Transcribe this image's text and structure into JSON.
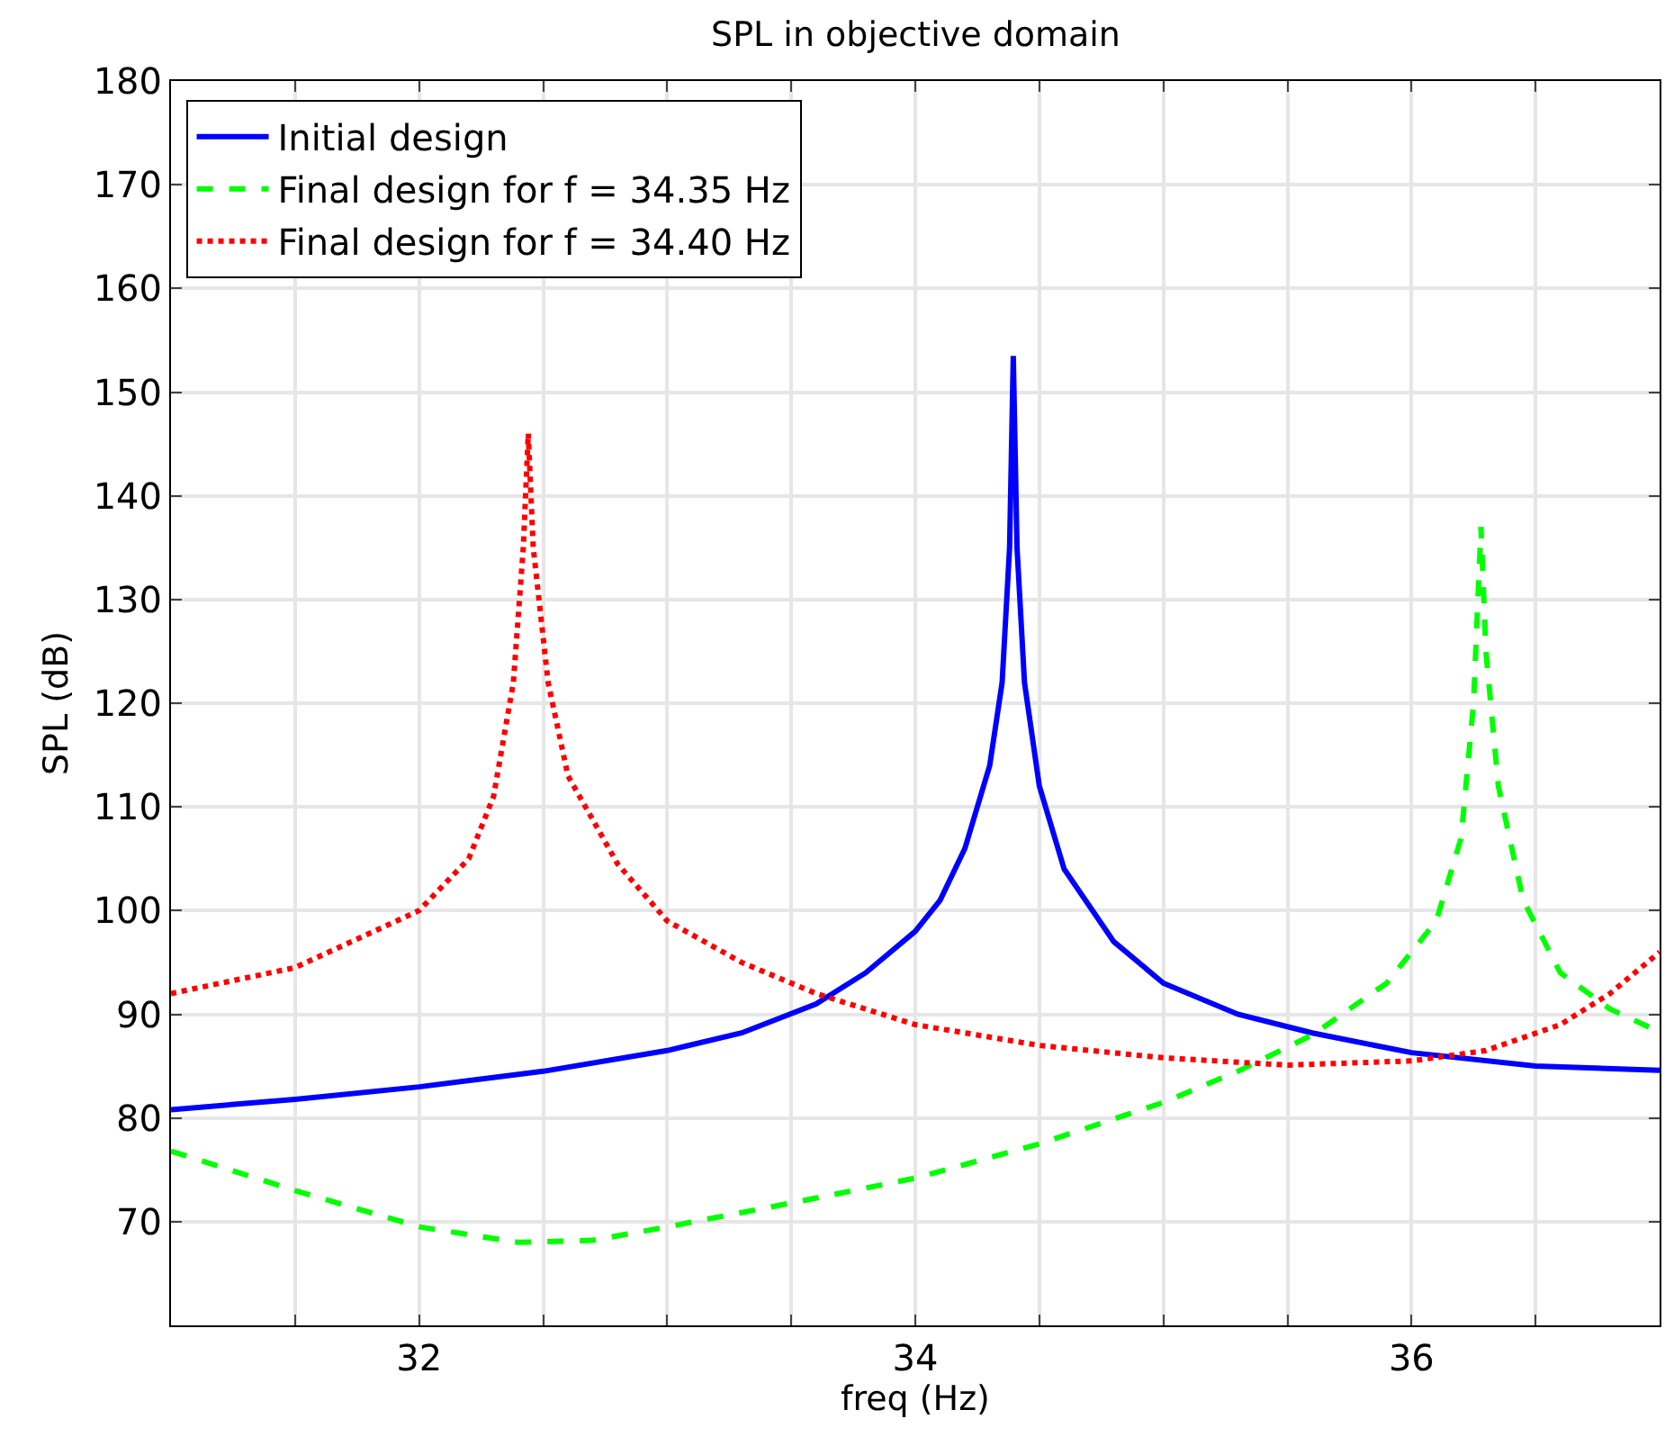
{
  "chart_data": {
    "type": "line",
    "title": "SPL in objective domain",
    "xlabel": "freq (Hz)",
    "ylabel": "SPL (dB)",
    "xlim": [
      31,
      37
    ],
    "xticks": [
      {
        "value": 31.5,
        "label": null
      },
      32,
      {
        "value": 32.5,
        "label": null
      },
      {
        "value": 33,
        "label": null
      },
      {
        "value": 33.5,
        "label": null
      },
      34,
      {
        "value": 34.5,
        "label": null
      },
      {
        "value": 35,
        "label": null
      },
      {
        "value": 35.5,
        "label": null
      },
      36,
      {
        "value": 36.5,
        "label": null
      }
    ],
    "ylim": [
      60,
      180
    ],
    "yticks": [
      70,
      80,
      90,
      100,
      110,
      120,
      130,
      140,
      150,
      160,
      170,
      180
    ],
    "grid": true,
    "legend": "top left",
    "series": [
      {
        "name": "Initial design",
        "color": "#0000ff",
        "line_style": "solid",
        "x": [
          31.0,
          31.5,
          32,
          32.5,
          33,
          33.3,
          33.6,
          33.8,
          34.0,
          34.1,
          34.2,
          34.3,
          34.35,
          34.38,
          34.395,
          34.41,
          34.44,
          34.5,
          34.6,
          34.8,
          35.0,
          35.3,
          35.6,
          36.0,
          36.5,
          37
        ],
        "values": [
          80.8,
          81.8,
          83.0,
          84.5,
          86.5,
          88.2,
          91,
          94,
          98,
          101,
          106,
          114,
          122,
          135,
          153.5,
          135,
          122,
          112,
          104,
          97,
          93,
          90,
          88.2,
          86.3,
          85,
          84.6
        ]
      },
      {
        "name": "Final design for f = 34.35 Hz",
        "color": "#00ff00",
        "line_style": "dashed",
        "x": [
          31.0,
          31.5,
          32,
          32.4,
          32.7,
          33,
          33.5,
          34,
          34.5,
          35,
          35.3,
          35.6,
          35.9,
          36.1,
          36.2,
          36.25,
          36.28,
          36.3,
          36.35,
          36.45,
          36.6,
          36.8,
          37
        ],
        "values": [
          76.8,
          73,
          69.5,
          68,
          68.2,
          69.5,
          71.8,
          74.2,
          77.5,
          81.5,
          84.5,
          88,
          93,
          99,
          107,
          120,
          137,
          125,
          112,
          101,
          94,
          90.5,
          88.3
        ]
      },
      {
        "name": "Final design for f = 34.40 Hz",
        "color": "#ff0000",
        "line_style": "dotted",
        "x": [
          31.0,
          31.5,
          32.0,
          32.2,
          32.3,
          32.38,
          32.42,
          32.44,
          32.46,
          32.52,
          32.6,
          32.8,
          33.0,
          33.3,
          33.6,
          34,
          34.5,
          35,
          35.5,
          36,
          36.3,
          36.6,
          36.8,
          37
        ],
        "values": [
          92,
          94.5,
          100,
          105,
          111,
          122,
          135,
          146,
          135,
          122,
          113,
          104.5,
          99,
          95,
          92,
          89,
          87,
          85.8,
          85.1,
          85.5,
          86.5,
          89,
          92,
          96
        ]
      }
    ]
  }
}
